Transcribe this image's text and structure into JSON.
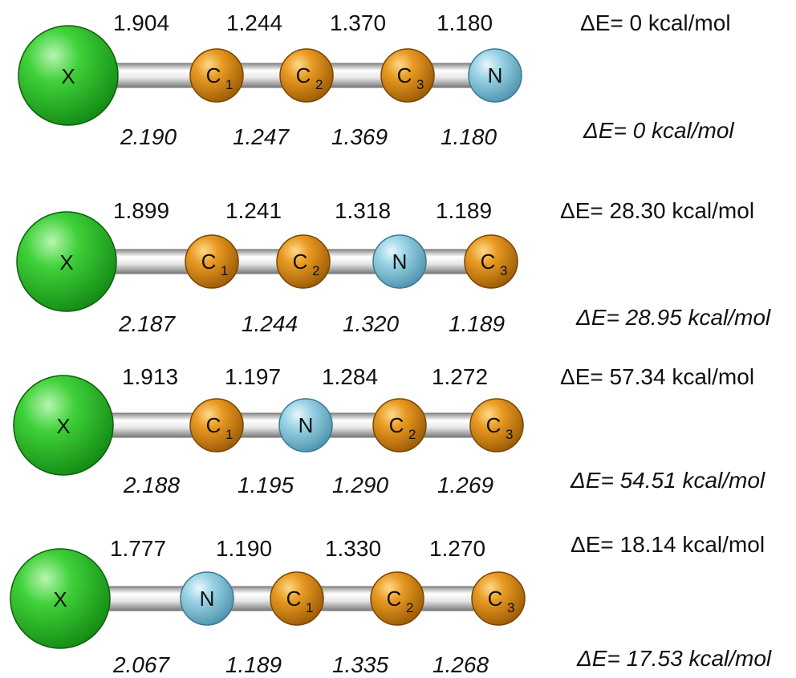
{
  "rows": [
    {
      "atoms": [
        {
          "sym": "X",
          "sub": ""
        },
        {
          "sym": "C",
          "sub": "1"
        },
        {
          "sym": "C",
          "sub": "2"
        },
        {
          "sym": "C",
          "sub": "3"
        },
        {
          "sym": "N",
          "sub": ""
        }
      ],
      "bonds_top": [
        "1.904",
        "1.244",
        "1.370",
        "1.180"
      ],
      "bonds_bottom": [
        "2.190",
        "1.247",
        "1.369",
        "1.180"
      ],
      "energy_top": "ΔE= 0 kcal/mol",
      "energy_bottom": "ΔE= 0 kcal/mol"
    },
    {
      "atoms": [
        {
          "sym": "X",
          "sub": ""
        },
        {
          "sym": "C",
          "sub": "1"
        },
        {
          "sym": "C",
          "sub": "2"
        },
        {
          "sym": "N",
          "sub": ""
        },
        {
          "sym": "C",
          "sub": "3"
        }
      ],
      "bonds_top": [
        "1.899",
        "1.241",
        "1.318",
        "1.189"
      ],
      "bonds_bottom": [
        "2.187",
        "1.244",
        "1.320",
        "1.189"
      ],
      "energy_top": "ΔE= 28.30 kcal/mol",
      "energy_bottom": "ΔE= 28.95 kcal/mol"
    },
    {
      "atoms": [
        {
          "sym": "X",
          "sub": ""
        },
        {
          "sym": "C",
          "sub": "1"
        },
        {
          "sym": "N",
          "sub": ""
        },
        {
          "sym": "C",
          "sub": "2"
        },
        {
          "sym": "C",
          "sub": "3"
        }
      ],
      "bonds_top": [
        "1.913",
        "1.197",
        "1.284",
        "1.272"
      ],
      "bonds_bottom": [
        "2.188",
        "1.195",
        "1.290",
        "1.269"
      ],
      "energy_top": "ΔE= 57.34 kcal/mol",
      "energy_bottom": "ΔE= 54.51 kcal/mol"
    },
    {
      "atoms": [
        {
          "sym": "X",
          "sub": ""
        },
        {
          "sym": "N",
          "sub": ""
        },
        {
          "sym": "C",
          "sub": "1"
        },
        {
          "sym": "C",
          "sub": "2"
        },
        {
          "sym": "C",
          "sub": "3"
        }
      ],
      "bonds_top": [
        "1.777",
        "1.190",
        "1.330",
        "1.270"
      ],
      "bonds_bottom": [
        "2.067",
        "1.189",
        "1.335",
        "1.268"
      ],
      "energy_top": "ΔE= 18.14 kcal/mol",
      "energy_bottom": "ΔE= 17.53 kcal/mol"
    }
  ],
  "colors": {
    "halogen": "#1fbf1f",
    "carbon": "#d98a14",
    "nitrogen": "#8ccbe0",
    "bond": "#d9d9d9"
  }
}
